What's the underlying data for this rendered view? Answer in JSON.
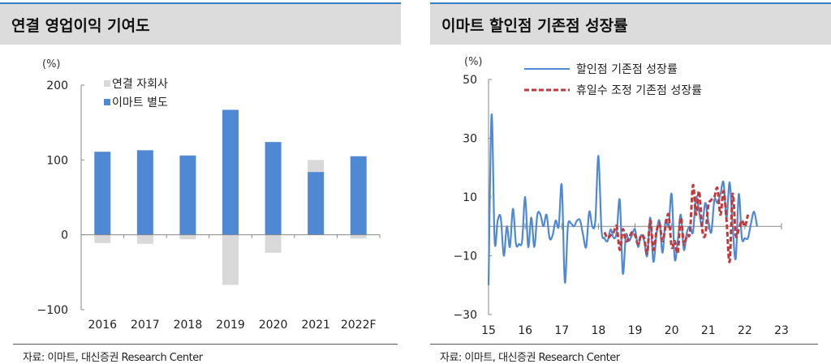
{
  "left": {
    "title": "연결 영업이익 기여도",
    "source": "자료: 이마트, 대신증권 Research Center"
  },
  "right": {
    "title": "이마트 할인점 기존점 성장률",
    "source": "자료: 이마트, 대신증권 Research Center"
  },
  "chart_data": [
    {
      "type": "bar",
      "stacked": true,
      "title": "연결 영업이익 기여도",
      "ylabel": "(%)",
      "ylim": [
        -100,
        200
      ],
      "yticks": [
        200,
        100,
        0,
        -100
      ],
      "ytick_labels": [
        "200",
        "100",
        "0",
        "−100"
      ],
      "categories": [
        "2016",
        "2017",
        "2018",
        "2019",
        "2020",
        "2021",
        "2022F"
      ],
      "series": [
        {
          "name": "연결 자회사",
          "color": "#d9d9d9",
          "values": [
            -11,
            -12,
            -6,
            -67,
            -24,
            16,
            -5
          ]
        },
        {
          "name": "이마트 별도",
          "color": "#4f88d3",
          "values": [
            111,
            113,
            106,
            167,
            124,
            84,
            105
          ]
        }
      ],
      "legend": "top-left"
    },
    {
      "type": "line",
      "title": "이마트 할인점 기존점 성장률",
      "ylabel": "(%)",
      "ylim": [
        -30,
        50
      ],
      "yticks": [
        50,
        30,
        10,
        -10,
        -30
      ],
      "ytick_labels": [
        "50",
        "30",
        "10",
        "−10",
        "−30"
      ],
      "xlim": [
        15,
        23
      ],
      "xtick_labels": [
        "15",
        "16",
        "17",
        "18",
        "19",
        "20",
        "21",
        "22",
        "23"
      ],
      "x_start": "2015-01",
      "frequency": "monthly",
      "series": [
        {
          "name": "할인점 기존점 성장률",
          "color": "#4f88d3",
          "style": "solid",
          "start_index": 0,
          "values": [
            -20,
            38,
            -5,
            2,
            3,
            -10,
            0,
            -7,
            6,
            -6,
            -6,
            -5,
            10,
            -7,
            3,
            -7,
            4,
            4,
            0,
            4,
            -4,
            -3,
            2,
            0,
            14,
            -19,
            0,
            1,
            0,
            2,
            2,
            -3,
            -7,
            5,
            0,
            2,
            24,
            -1,
            -4,
            -5,
            -1,
            -4,
            -2,
            9,
            -16,
            -3,
            -5,
            -3,
            -1,
            -7,
            -3,
            -5,
            -10,
            3,
            -12,
            -3,
            2,
            -9,
            2,
            0,
            11,
            -11,
            -5,
            4,
            -8,
            -2,
            0,
            -2,
            10,
            5,
            0,
            8,
            2,
            -2,
            9,
            8,
            11,
            15,
            3,
            15,
            0,
            -11,
            11,
            -4,
            -4,
            -4,
            1,
            5,
            0
          ]
        },
        {
          "name": "휴일수 조정 기존점 성장률",
          "color": "#c0393b",
          "style": "dashed",
          "start_index": 38,
          "values": [
            -2,
            -4,
            -3,
            -2,
            0,
            -8,
            -1,
            -5,
            -4,
            -2,
            -3,
            -6,
            -3,
            -4,
            -9,
            2,
            -8,
            -2,
            1,
            -5,
            0,
            4,
            -7,
            -5,
            -9,
            3,
            -6,
            -3,
            -2,
            14,
            4,
            12,
            -1,
            -3,
            7,
            9,
            10,
            13,
            4,
            12,
            2,
            -12,
            11,
            -3,
            -1,
            2,
            0,
            4
          ]
        }
      ],
      "legend": "top-center"
    }
  ]
}
